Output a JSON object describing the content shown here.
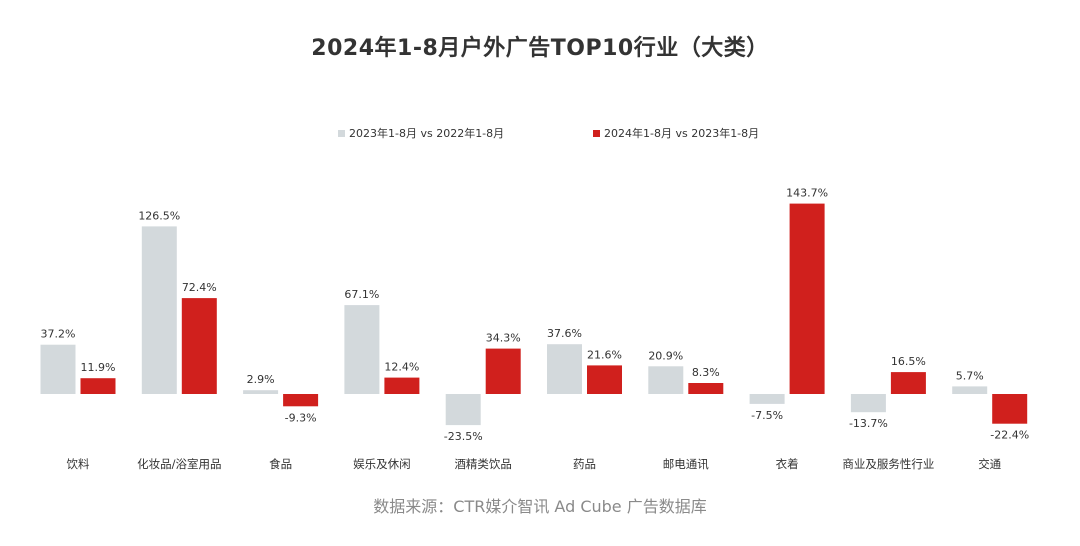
{
  "chart_data": {
    "type": "bar",
    "title": "2024年1-8月户外广告TOP10行业（大类）",
    "categories": [
      "饮料",
      "化妆品/浴室用品",
      "食品",
      "娱乐及休闲",
      "酒精类饮品",
      "药品",
      "邮电通讯",
      "衣着",
      "商业及服务性行业",
      "交通"
    ],
    "series": [
      {
        "name": "2023年1-8月 vs 2022年1-8月",
        "color": "#d3d9dc",
        "values": [
          37.2,
          126.5,
          2.9,
          67.1,
          -23.5,
          37.6,
          20.9,
          -7.5,
          -13.7,
          5.7
        ],
        "labels": [
          "37.2%",
          "126.5%",
          "2.9%",
          "67.1%",
          "-23.5%",
          "37.6%",
          "20.9%",
          "-7.5%",
          "-13.7%",
          "5.7%"
        ]
      },
      {
        "name": "2024年1-8月 vs 2023年1-8月",
        "color": "#d0201d",
        "values": [
          11.9,
          72.4,
          -9.3,
          12.4,
          34.3,
          21.6,
          8.3,
          143.7,
          16.5,
          -22.4
        ],
        "labels": [
          "11.9%",
          "72.4%",
          "-9.3%",
          "12.4%",
          "34.3%",
          "21.6%",
          "8.3%",
          "143.7%",
          "16.5%",
          "-22.4%"
        ]
      }
    ],
    "legend_position": "top-center",
    "grid": false,
    "ylim": [
      -30,
      150
    ]
  },
  "source": "数据来源：CTR媒介智讯 Ad Cube 广告数据库"
}
